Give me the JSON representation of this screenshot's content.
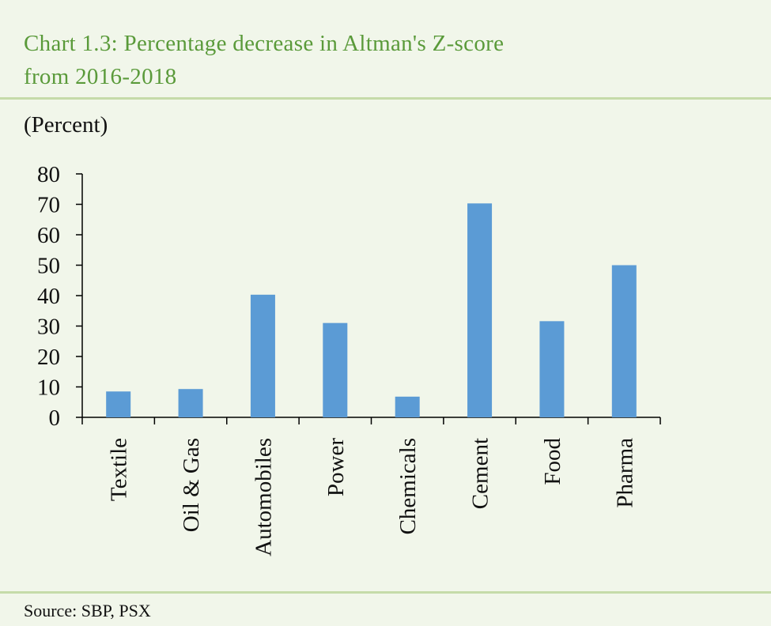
{
  "title_line1": "Chart 1.3: Percentage decrease in Altman's Z-score",
  "title_line2": "from 2016-2018",
  "source": "Source: SBP, PSX",
  "colors": {
    "background": "#f1f6ea",
    "title": "#5a9a3a",
    "rule": "#c5dba9",
    "bar": "#5b9bd5",
    "axis": "#000000"
  },
  "chart_data": {
    "type": "bar",
    "ylabel": "(Percent)",
    "xlabel": "",
    "categories": [
      "Textile",
      "Oil & Gas",
      "Automobiles",
      "Power",
      "Chemicals",
      "Cement",
      "Food",
      "Pharma"
    ],
    "values": [
      8.5,
      9.3,
      40.3,
      31.0,
      6.8,
      70.3,
      31.6,
      50.0
    ],
    "ylim": [
      0,
      80
    ],
    "yticks": [
      0,
      10,
      20,
      30,
      40,
      50,
      60,
      70,
      80
    ],
    "grid": false,
    "legend": "none"
  }
}
